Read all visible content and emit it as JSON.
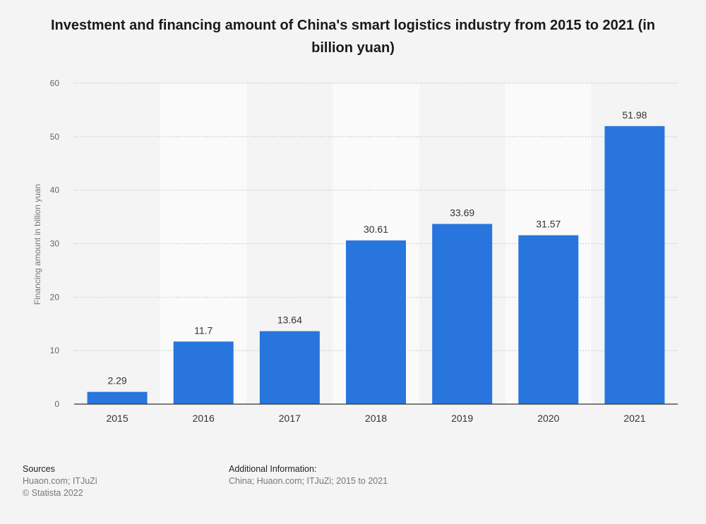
{
  "chart_data": {
    "type": "bar",
    "title": "Investment and financing amount of China's smart logistics industry from 2015 to 2021 (in billion yuan)",
    "xlabel": "",
    "ylabel": "Financing amount in billion yuan",
    "categories": [
      "2015",
      "2016",
      "2017",
      "2018",
      "2019",
      "2020",
      "2021"
    ],
    "values": [
      2.29,
      11.7,
      13.64,
      30.61,
      33.69,
      31.57,
      51.98
    ],
    "value_labels": [
      "2.29",
      "11.7",
      "13.64",
      "30.61",
      "33.69",
      "31.57",
      "51.98"
    ],
    "ylim": [
      0,
      60
    ],
    "yticks": [
      0,
      10,
      20,
      30,
      40,
      50,
      60
    ],
    "grid": true,
    "bar_color": "#2876dd"
  },
  "footer": {
    "sources_heading": "Sources",
    "sources_line1": "Huaon.com; ITJuZi",
    "sources_line2": "© Statista 2022",
    "additional_heading": "Additional Information:",
    "additional_text": "China; Huaon.com; ITJuZi; 2015 to 2021"
  }
}
